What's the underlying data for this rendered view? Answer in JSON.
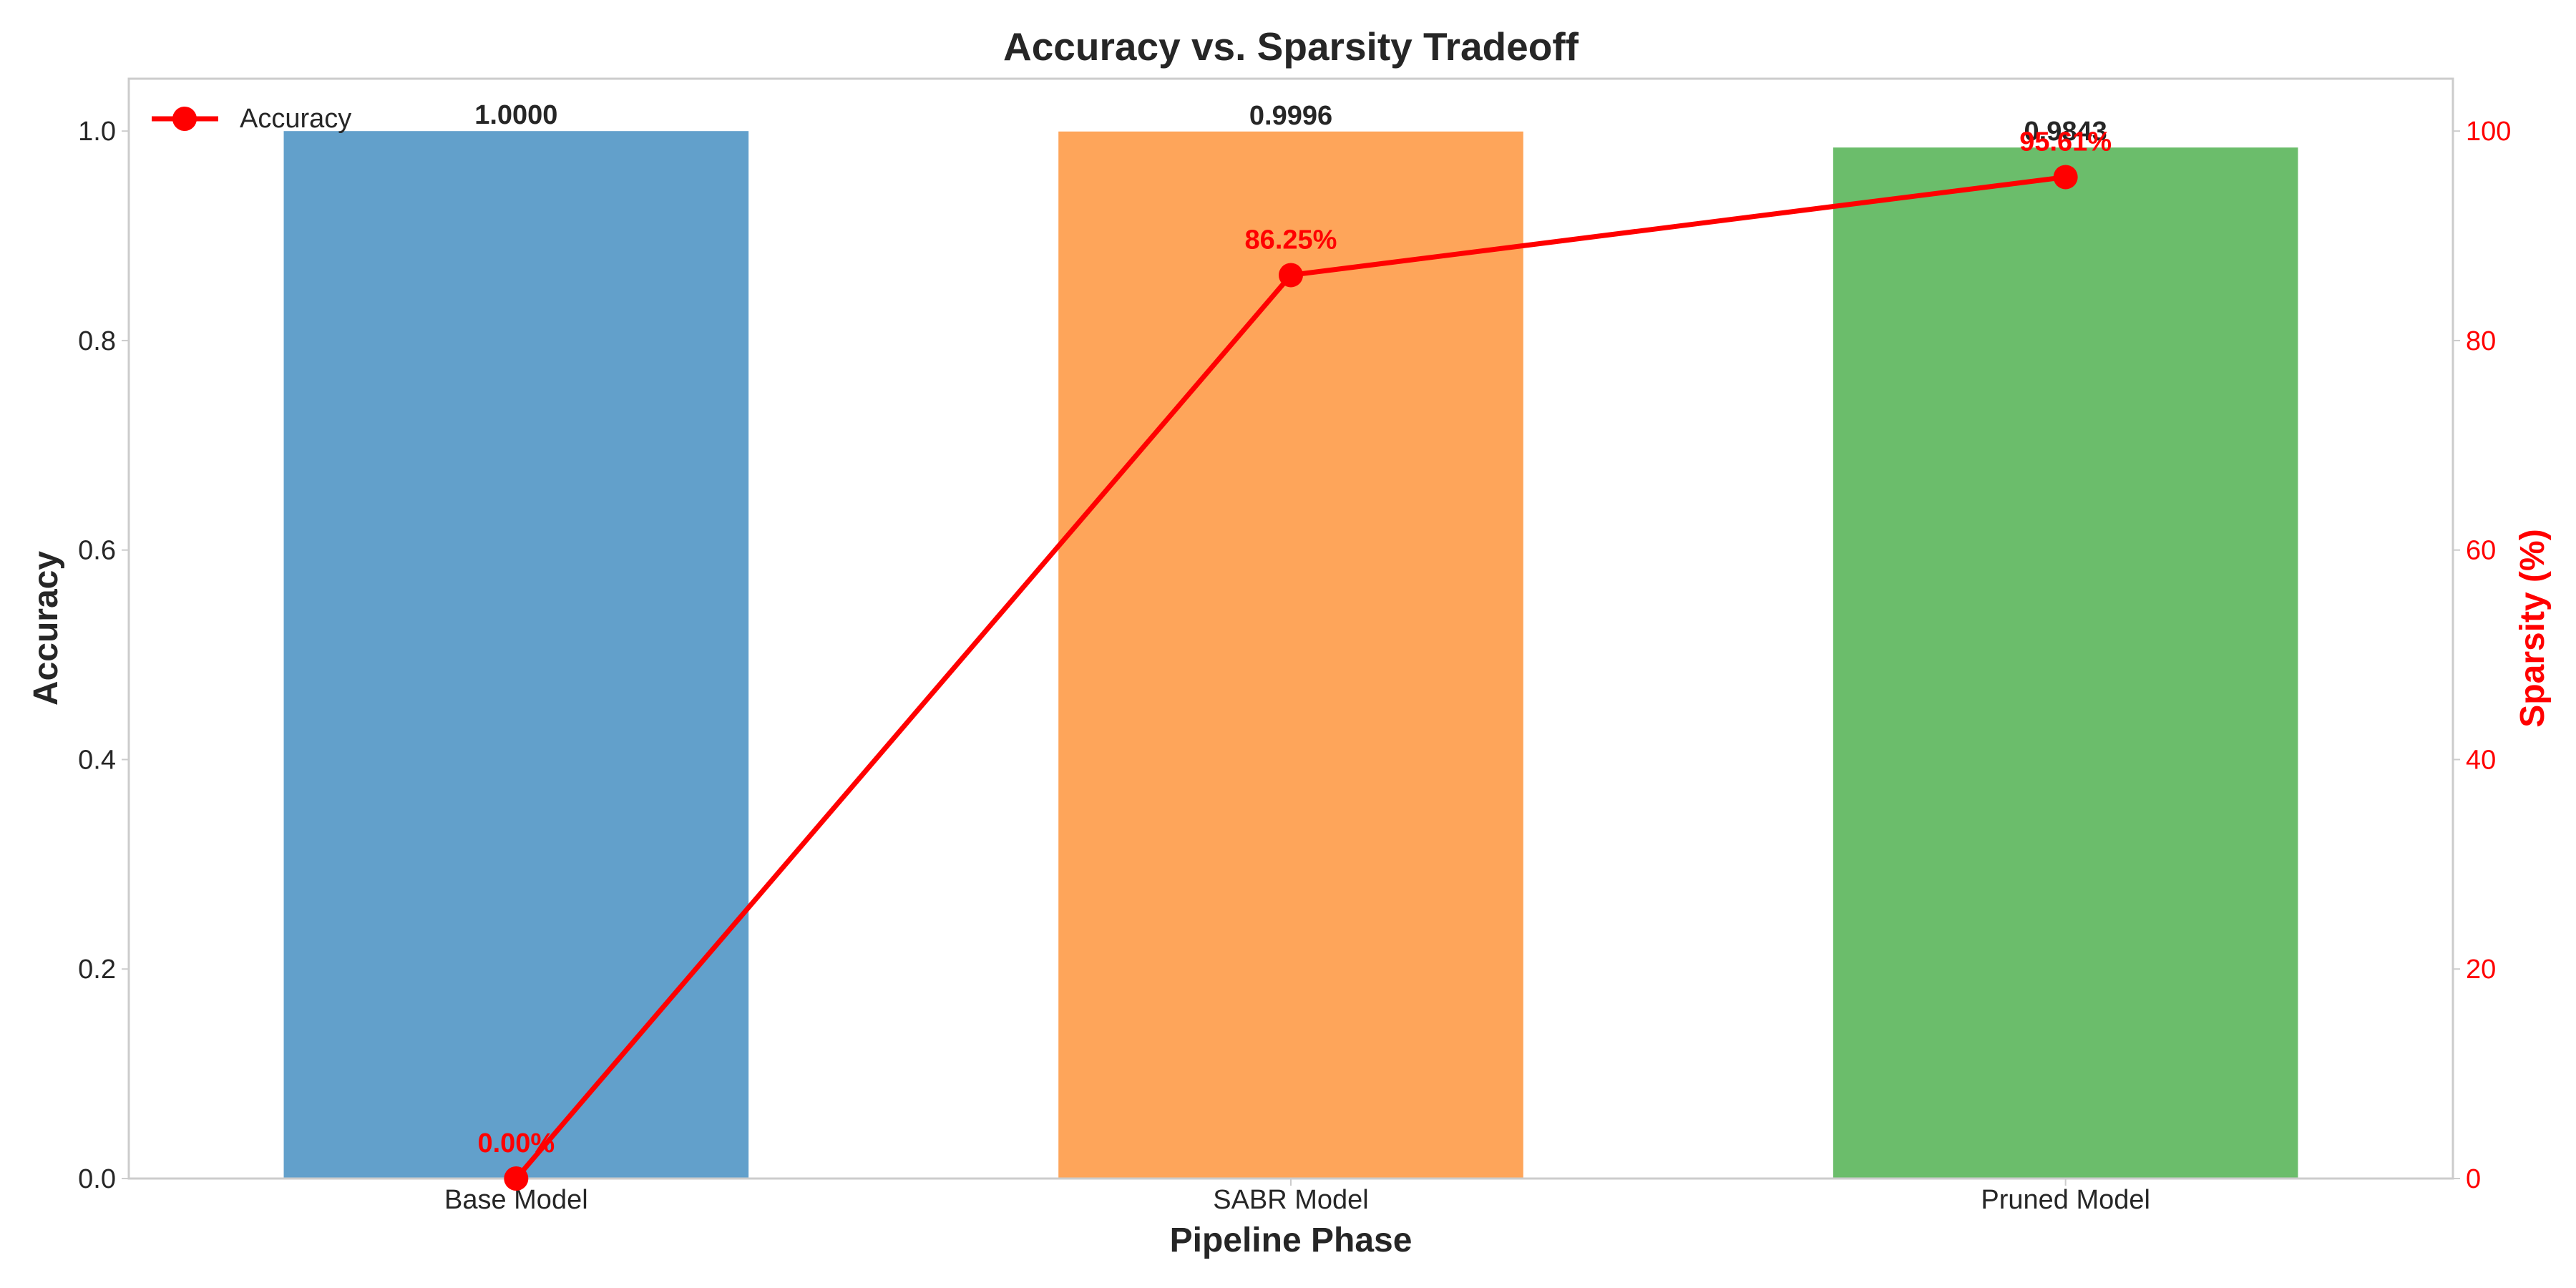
{
  "chart_data": {
    "type": "bar",
    "title": "Accuracy vs. Sparsity Tradeoff",
    "xlabel": "Pipeline Phase",
    "ylabel": "Accuracy",
    "y2label": "Sparsity (%)",
    "categories": [
      "Base Model",
      "SABR Model",
      "Pruned Model"
    ],
    "ylim": [
      0,
      1.05
    ],
    "y2lim": [
      0,
      105
    ],
    "yticks": [
      "0.0",
      "0.2",
      "0.4",
      "0.6",
      "0.8",
      "1.0"
    ],
    "y2ticks": [
      "0",
      "20",
      "40",
      "60",
      "80",
      "100"
    ],
    "grid": false,
    "legend_position": "top-left",
    "series": [
      {
        "name": "",
        "type": "bar",
        "axis": "left",
        "values": [
          1.0,
          0.9996,
          0.9843
        ],
        "labels": [
          "1.0000",
          "0.9996",
          "0.9843"
        ],
        "colors": [
          "#62a0cb",
          "#fea55a",
          "#6bbd6b"
        ]
      },
      {
        "name": "Accuracy",
        "type": "line",
        "axis": "right",
        "values": [
          0.0,
          86.25,
          95.61
        ],
        "labels": [
          "0.00%",
          "86.25%",
          "95.61%"
        ],
        "color": "#ff0000"
      }
    ]
  }
}
